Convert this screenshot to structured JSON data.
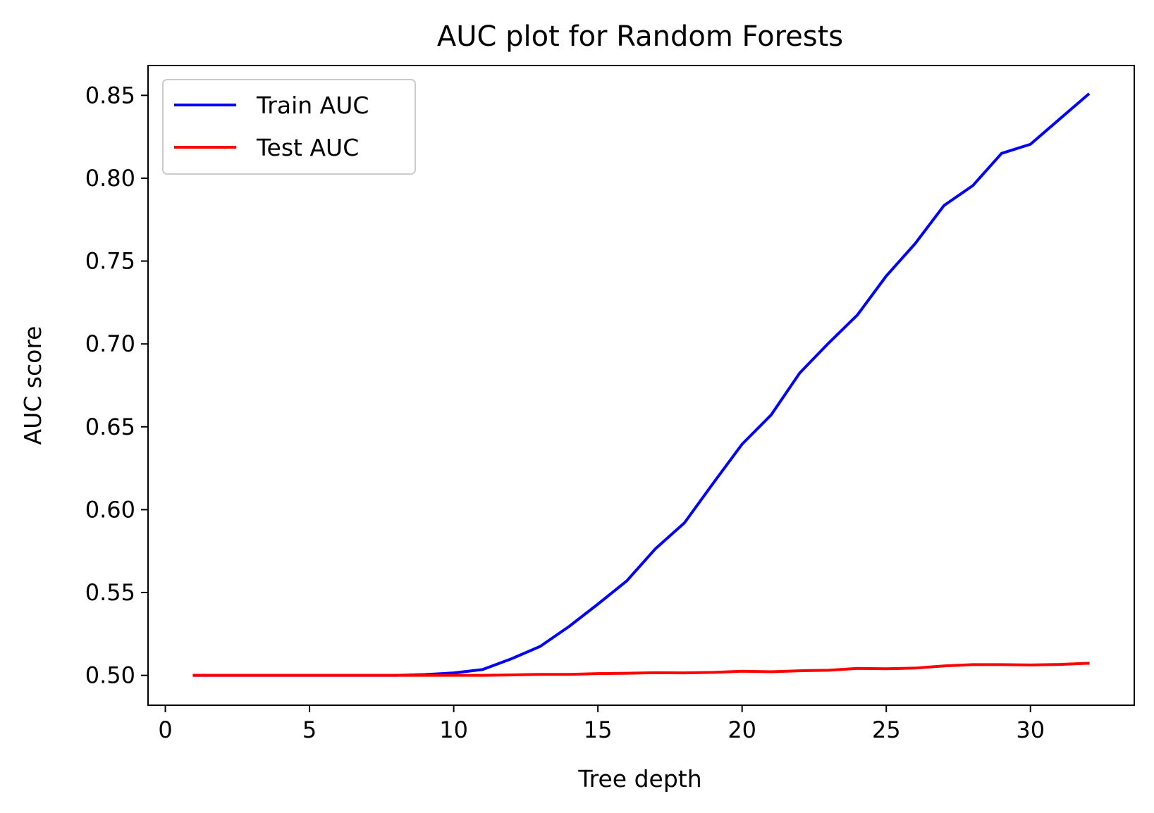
{
  "chart_data": {
    "type": "line",
    "title": "AUC plot for Random Forests",
    "xlabel": "Tree depth",
    "ylabel": "AUC score",
    "xlim": [
      -0.6,
      33.6
    ],
    "ylim": [
      0.482,
      0.868
    ],
    "xticks": [
      0,
      5,
      10,
      15,
      20,
      25,
      30
    ],
    "xtick_labels": [
      "0",
      "5",
      "10",
      "15",
      "20",
      "25",
      "30"
    ],
    "yticks": [
      0.5,
      0.55,
      0.6,
      0.65,
      0.7,
      0.75,
      0.8,
      0.85
    ],
    "ytick_labels": [
      "0.50",
      "0.55",
      "0.60",
      "0.65",
      "0.70",
      "0.75",
      "0.80",
      "0.85"
    ],
    "grid": false,
    "legend_position": "top-left",
    "x": [
      1,
      2,
      3,
      4,
      5,
      6,
      7,
      8,
      9,
      10,
      11,
      12,
      13,
      14,
      15,
      16,
      17,
      18,
      19,
      20,
      21,
      22,
      23,
      24,
      25,
      26,
      27,
      28,
      29,
      30,
      31,
      32
    ],
    "series": [
      {
        "name": "Train AUC",
        "color": "#0000ff",
        "values": [
          0.5,
          0.5,
          0.5,
          0.5,
          0.5,
          0.5,
          0.5,
          0.5,
          0.5005,
          0.5015,
          0.5035,
          0.51,
          0.5175,
          0.5295,
          0.543,
          0.557,
          0.5765,
          0.592,
          0.616,
          0.6395,
          0.657,
          0.6825,
          0.7005,
          0.7175,
          0.741,
          0.7605,
          0.7835,
          0.7955,
          0.815,
          0.8205,
          0.8355,
          0.8505
        ]
      },
      {
        "name": "Test AUC",
        "color": "#ff0000",
        "values": [
          0.5,
          0.5,
          0.5,
          0.5,
          0.5,
          0.5,
          0.5,
          0.5,
          0.5,
          0.5,
          0.5,
          0.5003,
          0.5006,
          0.5006,
          0.5011,
          0.5013,
          0.5016,
          0.5015,
          0.5018,
          0.5025,
          0.5022,
          0.5028,
          0.5031,
          0.5042,
          0.504,
          0.5044,
          0.5057,
          0.5065,
          0.5065,
          0.5063,
          0.5066,
          0.5073
        ]
      }
    ]
  }
}
